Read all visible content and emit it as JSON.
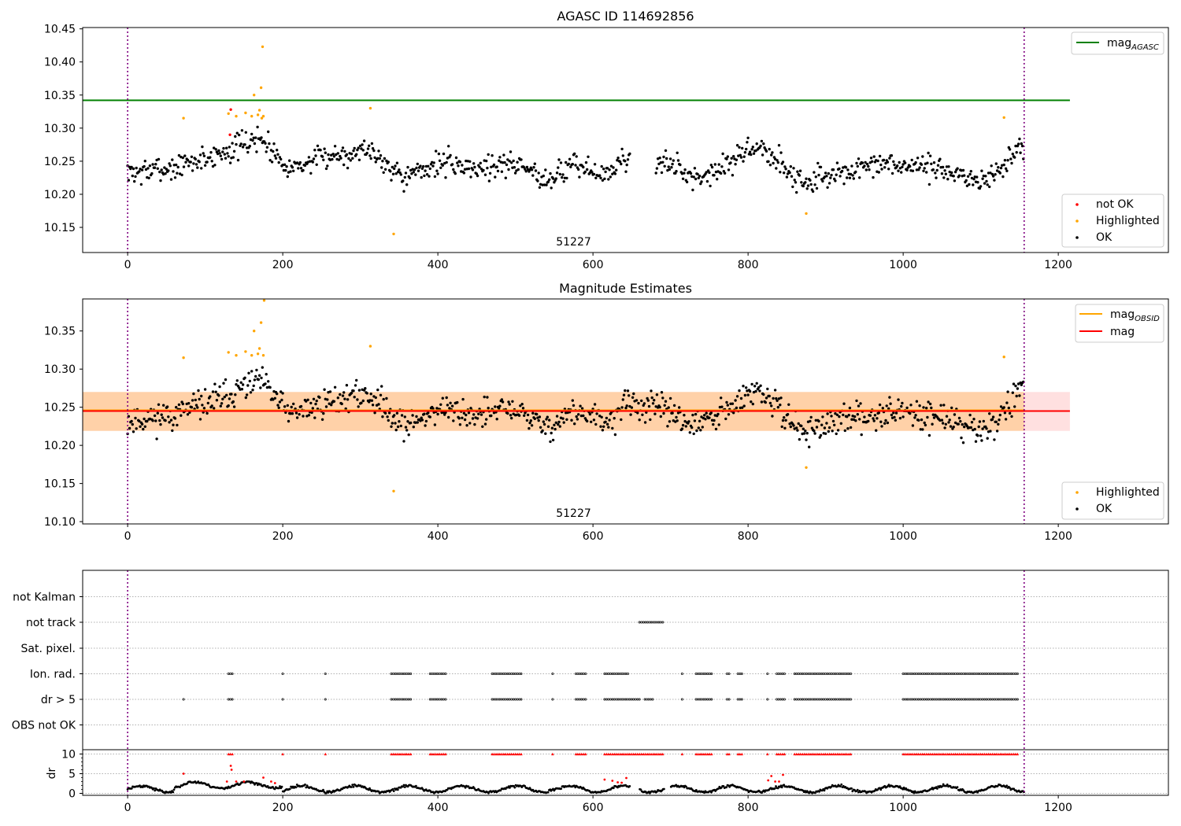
{
  "chart_data": [
    {
      "type": "scatter",
      "title": "AGASC ID 114692856",
      "xlim": [
        -58,
        1342
      ],
      "ylim": [
        10.112,
        10.452
      ],
      "xticks": [
        0,
        200,
        400,
        600,
        800,
        1000,
        1200
      ],
      "yticks": [
        10.15,
        10.2,
        10.25,
        10.3,
        10.35,
        10.4,
        10.45
      ],
      "ytick_decimals": 2,
      "obsid_label": "51227",
      "obsid_label_x": 575,
      "obsid_bounds": [
        0,
        1156
      ],
      "reference_line": {
        "name": "mag",
        "subscript": "AGASC",
        "value": 10.342,
        "x_range": [
          -58,
          1215
        ],
        "color": "#008000"
      },
      "legend_upper": [
        {
          "label": "mag",
          "subscript": "AGASC",
          "kind": "line",
          "color": "#008000"
        }
      ],
      "legend_lower": [
        {
          "label": "not OK",
          "kind": "dot",
          "color": "#ff0000"
        },
        {
          "label": "Highlighted",
          "kind": "dot",
          "color": "#ffa500"
        },
        {
          "label": "OK",
          "kind": "dot",
          "color": "#000000"
        }
      ],
      "series": [
        {
          "name": "OK",
          "color": "#000000",
          "generator": "mag_trend",
          "x_range": [
            0,
            1156
          ],
          "skip_x": [
            [
              648,
              680
            ]
          ],
          "seed": 7
        },
        {
          "name": "Highlighted",
          "color": "#ffa500",
          "points": [
            [
              72,
              10.315
            ],
            [
              130,
              10.322
            ],
            [
              140,
              10.318
            ],
            [
              152,
              10.323
            ],
            [
              160,
              10.318
            ],
            [
              163,
              10.35
            ],
            [
              168,
              10.32
            ],
            [
              170,
              10.327
            ],
            [
              172,
              10.361
            ],
            [
              173,
              10.315
            ],
            [
              174,
              10.423
            ],
            [
              175,
              10.318
            ],
            [
              313,
              10.33
            ],
            [
              343,
              10.14
            ],
            [
              875,
              10.171
            ],
            [
              1130,
              10.316
            ]
          ]
        },
        {
          "name": "not OK",
          "color": "#ff0000",
          "points": [
            [
              133,
              10.328
            ],
            [
              132,
              10.29
            ]
          ]
        }
      ]
    },
    {
      "type": "scatter",
      "title": "Magnitude Estimates",
      "xlim": [
        -58,
        1342
      ],
      "ylim": [
        10.097,
        10.392
      ],
      "xticks": [
        0,
        200,
        400,
        600,
        800,
        1000,
        1200
      ],
      "yticks": [
        10.1,
        10.15,
        10.2,
        10.25,
        10.3,
        10.35
      ],
      "ytick_decimals": 2,
      "obsid_label": "51227",
      "obsid_label_x": 575,
      "obsid_bounds": [
        0,
        1156
      ],
      "band_outer": [
        10.219,
        10.27
      ],
      "band_inner": [
        10.219,
        10.27
      ],
      "mag_line": {
        "name": "mag",
        "value": 10.245,
        "color": "#ff0000"
      },
      "mag_obsid_line": {
        "name": "mag",
        "subscript": "OBSID",
        "value": 10.246,
        "color": "#ffa500"
      },
      "legend_upper": [
        {
          "label": "mag",
          "subscript": "OBSID",
          "kind": "line",
          "color": "#ffa500"
        },
        {
          "label": "mag",
          "kind": "line",
          "color": "#ff0000"
        }
      ],
      "legend_lower": [
        {
          "label": "Highlighted",
          "kind": "dot",
          "color": "#ffa500"
        },
        {
          "label": "OK",
          "kind": "dot",
          "color": "#000000"
        }
      ],
      "series": [
        {
          "name": "OK",
          "color": "#000000",
          "generator": "mag_trend",
          "x_range": [
            0,
            1156
          ],
          "skip_x": [],
          "seed": 11
        },
        {
          "name": "Highlighted",
          "color": "#ffa500",
          "points": [
            [
              72,
              10.315
            ],
            [
              130,
              10.322
            ],
            [
              140,
              10.318
            ],
            [
              152,
              10.323
            ],
            [
              160,
              10.318
            ],
            [
              163,
              10.35
            ],
            [
              168,
              10.32
            ],
            [
              170,
              10.327
            ],
            [
              172,
              10.361
            ],
            [
              175,
              10.318
            ],
            [
              176,
              10.39
            ],
            [
              313,
              10.33
            ],
            [
              343,
              10.14
            ],
            [
              875,
              10.171
            ],
            [
              1130,
              10.316
            ]
          ]
        }
      ]
    },
    {
      "type": "scatter",
      "title": "",
      "xlim": [
        -58,
        1342
      ],
      "xticks": [
        0,
        200,
        400,
        600,
        800,
        1000,
        1200
      ],
      "obsid_bounds": [
        0,
        1156
      ],
      "flag_rows": [
        "OBS not OK",
        "dr > 5",
        "Ion. rad.",
        "Sat. pixel.",
        "not track",
        "not Kalman"
      ],
      "flag_points": {
        "not track": [
          [
            660,
            690
          ]
        ],
        "Ion. rad.": [
          [
            130,
            137
          ],
          [
            200,
            200
          ],
          [
            255,
            255
          ],
          [
            340,
            367
          ],
          [
            390,
            410
          ],
          [
            470,
            508
          ],
          [
            548,
            548
          ],
          [
            578,
            592
          ],
          [
            615,
            645
          ],
          [
            715,
            715
          ],
          [
            733,
            753
          ],
          [
            773,
            777
          ],
          [
            787,
            792
          ],
          [
            825,
            825
          ],
          [
            837,
            847
          ],
          [
            860,
            933
          ],
          [
            1000,
            1148
          ]
        ],
        "dr > 5": [
          [
            72,
            72
          ],
          [
            130,
            137
          ],
          [
            200,
            200
          ],
          [
            255,
            255
          ],
          [
            340,
            367
          ],
          [
            390,
            410
          ],
          [
            470,
            508
          ],
          [
            548,
            548
          ],
          [
            578,
            592
          ],
          [
            615,
            660
          ],
          [
            667,
            677
          ],
          [
            715,
            715
          ],
          [
            733,
            753
          ],
          [
            773,
            777
          ],
          [
            787,
            792
          ],
          [
            825,
            825
          ],
          [
            837,
            847
          ],
          [
            860,
            933
          ],
          [
            1000,
            1148
          ]
        ]
      },
      "dr_axis": {
        "label": "dr",
        "ylim": [
          -0.5,
          10.5
        ],
        "yticks": [
          0,
          5,
          10
        ]
      },
      "dr_clipped_value": 10,
      "dr_clipped_ranges": [
        [
          130,
          137
        ],
        [
          200,
          200
        ],
        [
          255,
          255
        ],
        [
          340,
          367
        ],
        [
          390,
          410
        ],
        [
          470,
          508
        ],
        [
          548,
          548
        ],
        [
          578,
          592
        ],
        [
          615,
          690
        ],
        [
          715,
          715
        ],
        [
          733,
          753
        ],
        [
          773,
          777
        ],
        [
          787,
          792
        ],
        [
          825,
          825
        ],
        [
          837,
          847
        ],
        [
          860,
          933
        ],
        [
          1000,
          1148
        ]
      ],
      "dr_gap_ranges": [
        [
          648,
          660
        ],
        [
          692,
          700
        ]
      ],
      "dr_red_points": [
        [
          72,
          5
        ],
        [
          128,
          3
        ],
        [
          133,
          7
        ],
        [
          134,
          6
        ],
        [
          140,
          3
        ],
        [
          150,
          3
        ],
        [
          175,
          4
        ],
        [
          185,
          3
        ],
        [
          190,
          2.6
        ],
        [
          615,
          3.5
        ],
        [
          625,
          3.2
        ],
        [
          632,
          2.8
        ],
        [
          637,
          2.7
        ],
        [
          643,
          3.9
        ],
        [
          826,
          3.3
        ],
        [
          830,
          4.4
        ],
        [
          835,
          3
        ],
        [
          840,
          3
        ],
        [
          845,
          4.7
        ]
      ]
    }
  ]
}
